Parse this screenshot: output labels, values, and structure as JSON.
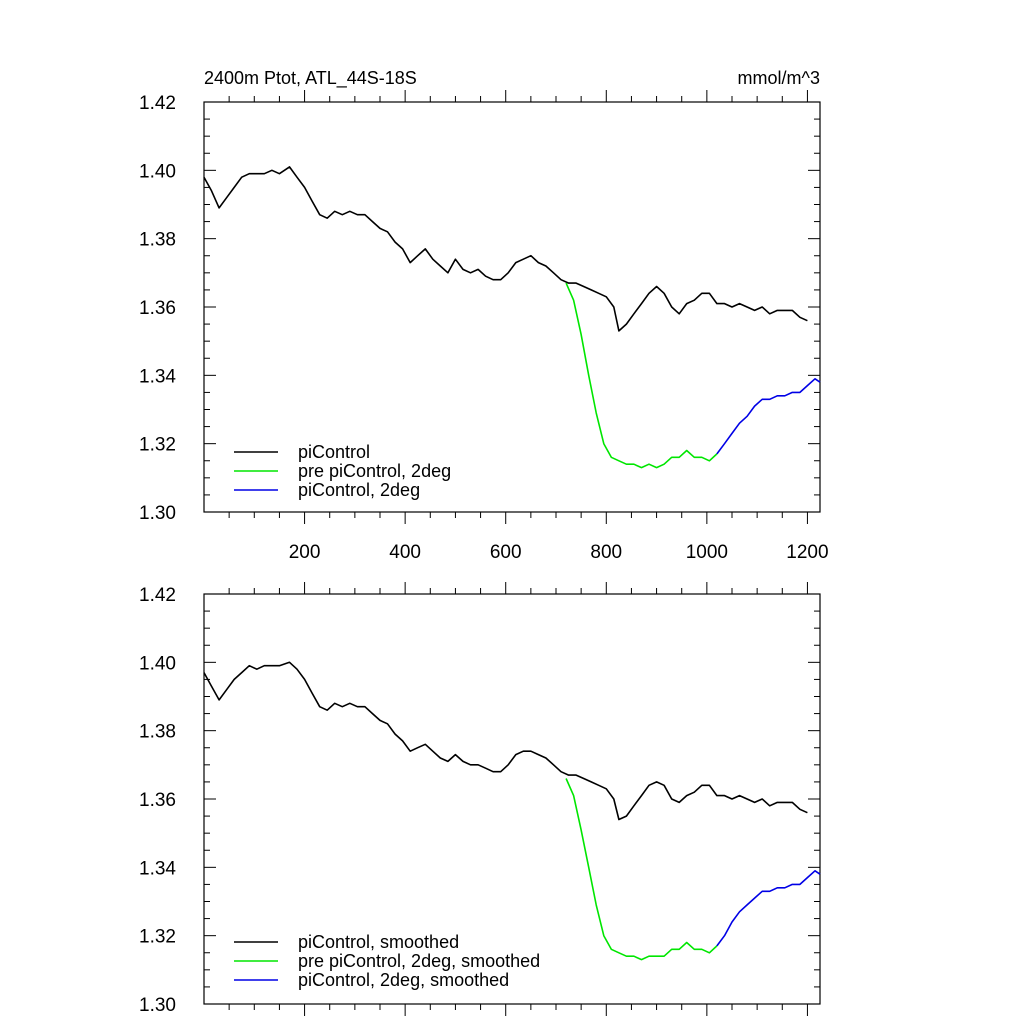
{
  "chart_data": [
    {
      "type": "line",
      "title": "2400m Ptot, ATL_44S-18S",
      "units": "mmol/m^3",
      "xlabel": "",
      "ylabel": "",
      "xlim": [
        0,
        1225
      ],
      "ylim": [
        1.3,
        1.42
      ],
      "x_ticks": [
        200,
        400,
        600,
        800,
        1000,
        1200
      ],
      "x_tick_labels": [
        "200",
        "400",
        "600",
        "800",
        "1000",
        "1200"
      ],
      "y_ticks": [
        1.3,
        1.32,
        1.34,
        1.36,
        1.38,
        1.4,
        1.42
      ],
      "y_tick_labels": [
        "1.30",
        "1.32",
        "1.34",
        "1.36",
        "1.38",
        "1.40",
        "1.42"
      ],
      "grid": false,
      "legend_position": "bottom-left",
      "series": [
        {
          "name": "piControl",
          "color": "#000000",
          "x": [
            0,
            15,
            30,
            45,
            60,
            75,
            90,
            105,
            120,
            135,
            150,
            170,
            185,
            200,
            215,
            230,
            245,
            260,
            275,
            290,
            305,
            320,
            335,
            350,
            365,
            380,
            395,
            410,
            425,
            440,
            455,
            470,
            485,
            500,
            515,
            530,
            545,
            560,
            575,
            590,
            605,
            620,
            635,
            650,
            665,
            680,
            695,
            710,
            725,
            740,
            755,
            770,
            785,
            800,
            815,
            825,
            840,
            855,
            870,
            885,
            900,
            915,
            930,
            945,
            960,
            975,
            990,
            1005,
            1020,
            1035,
            1050,
            1065,
            1080,
            1095,
            1110,
            1125,
            1140,
            1155,
            1170,
            1185,
            1200
          ],
          "y": [
            1.398,
            1.394,
            1.389,
            1.392,
            1.395,
            1.398,
            1.399,
            1.399,
            1.399,
            1.4,
            1.399,
            1.401,
            1.398,
            1.395,
            1.391,
            1.387,
            1.386,
            1.388,
            1.387,
            1.388,
            1.387,
            1.387,
            1.385,
            1.383,
            1.382,
            1.379,
            1.377,
            1.373,
            1.375,
            1.377,
            1.374,
            1.372,
            1.37,
            1.374,
            1.371,
            1.37,
            1.371,
            1.369,
            1.368,
            1.368,
            1.37,
            1.373,
            1.374,
            1.375,
            1.373,
            1.372,
            1.37,
            1.368,
            1.367,
            1.367,
            1.366,
            1.365,
            1.364,
            1.363,
            1.36,
            1.353,
            1.355,
            1.358,
            1.361,
            1.364,
            1.366,
            1.364,
            1.36,
            1.358,
            1.361,
            1.362,
            1.364,
            1.364,
            1.361,
            1.361,
            1.36,
            1.361,
            1.36,
            1.359,
            1.36,
            1.358,
            1.359,
            1.359,
            1.359,
            1.357,
            1.356
          ]
        },
        {
          "name": "pre piControl, 2deg",
          "color": "#00e600",
          "x": [
            720,
            735,
            750,
            765,
            780,
            795,
            810,
            825,
            840,
            855,
            870,
            885,
            900,
            915,
            930,
            945,
            960,
            975,
            990,
            1005,
            1020
          ],
          "y": [
            1.367,
            1.362,
            1.352,
            1.34,
            1.329,
            1.32,
            1.316,
            1.315,
            1.314,
            1.314,
            1.313,
            1.314,
            1.313,
            1.314,
            1.316,
            1.316,
            1.318,
            1.316,
            1.316,
            1.315,
            1.317
          ]
        },
        {
          "name": "piControl, 2deg",
          "color": "#0000e6",
          "x": [
            1020,
            1035,
            1050,
            1065,
            1080,
            1095,
            1110,
            1125,
            1140,
            1155,
            1170,
            1185,
            1200,
            1215,
            1225
          ],
          "y": [
            1.317,
            1.32,
            1.323,
            1.326,
            1.328,
            1.331,
            1.333,
            1.333,
            1.334,
            1.334,
            1.335,
            1.335,
            1.337,
            1.339,
            1.338
          ]
        }
      ]
    },
    {
      "type": "line",
      "title": "",
      "units": "",
      "xlabel": "",
      "ylabel": "",
      "xlim": [
        0,
        1225
      ],
      "ylim": [
        1.3,
        1.42
      ],
      "x_ticks": [
        200,
        400,
        600,
        800,
        1000,
        1200
      ],
      "x_tick_labels": [],
      "y_ticks": [
        1.3,
        1.32,
        1.34,
        1.36,
        1.38,
        1.4,
        1.42
      ],
      "y_tick_labels": [
        "1.30",
        "1.32",
        "1.34",
        "1.36",
        "1.38",
        "1.40",
        "1.42"
      ],
      "grid": false,
      "legend_position": "bottom-left",
      "series": [
        {
          "name": "piControl, smoothed",
          "color": "#000000",
          "x": [
            0,
            15,
            30,
            45,
            60,
            75,
            90,
            105,
            120,
            135,
            150,
            170,
            185,
            200,
            215,
            230,
            245,
            260,
            275,
            290,
            305,
            320,
            335,
            350,
            365,
            380,
            395,
            410,
            425,
            440,
            455,
            470,
            485,
            500,
            515,
            530,
            545,
            560,
            575,
            590,
            605,
            620,
            635,
            650,
            665,
            680,
            695,
            710,
            725,
            740,
            755,
            770,
            785,
            800,
            815,
            825,
            840,
            855,
            870,
            885,
            900,
            915,
            930,
            945,
            960,
            975,
            990,
            1005,
            1020,
            1035,
            1050,
            1065,
            1080,
            1095,
            1110,
            1125,
            1140,
            1155,
            1170,
            1185,
            1200
          ],
          "y": [
            1.397,
            1.393,
            1.389,
            1.392,
            1.395,
            1.397,
            1.399,
            1.398,
            1.399,
            1.399,
            1.399,
            1.4,
            1.398,
            1.395,
            1.391,
            1.387,
            1.386,
            1.388,
            1.387,
            1.388,
            1.387,
            1.387,
            1.385,
            1.383,
            1.382,
            1.379,
            1.377,
            1.374,
            1.375,
            1.376,
            1.374,
            1.372,
            1.371,
            1.373,
            1.371,
            1.37,
            1.37,
            1.369,
            1.368,
            1.368,
            1.37,
            1.373,
            1.374,
            1.374,
            1.373,
            1.372,
            1.37,
            1.368,
            1.367,
            1.367,
            1.366,
            1.365,
            1.364,
            1.363,
            1.36,
            1.354,
            1.355,
            1.358,
            1.361,
            1.364,
            1.365,
            1.364,
            1.36,
            1.359,
            1.361,
            1.362,
            1.364,
            1.364,
            1.361,
            1.361,
            1.36,
            1.361,
            1.36,
            1.359,
            1.36,
            1.358,
            1.359,
            1.359,
            1.359,
            1.357,
            1.356
          ]
        },
        {
          "name": "pre piControl, 2deg, smoothed",
          "color": "#00e600",
          "x": [
            720,
            735,
            750,
            765,
            780,
            795,
            810,
            825,
            840,
            855,
            870,
            885,
            900,
            915,
            930,
            945,
            960,
            975,
            990,
            1005,
            1020
          ],
          "y": [
            1.366,
            1.361,
            1.351,
            1.34,
            1.329,
            1.32,
            1.316,
            1.315,
            1.314,
            1.314,
            1.313,
            1.314,
            1.314,
            1.314,
            1.316,
            1.316,
            1.318,
            1.316,
            1.316,
            1.315,
            1.317
          ]
        },
        {
          "name": "piControl, 2deg, smoothed",
          "color": "#0000e6",
          "x": [
            1020,
            1035,
            1050,
            1065,
            1080,
            1095,
            1110,
            1125,
            1140,
            1155,
            1170,
            1185,
            1200,
            1215,
            1225
          ],
          "y": [
            1.317,
            1.32,
            1.324,
            1.327,
            1.329,
            1.331,
            1.333,
            1.333,
            1.334,
            1.334,
            1.335,
            1.335,
            1.337,
            1.339,
            1.338
          ]
        }
      ]
    }
  ]
}
